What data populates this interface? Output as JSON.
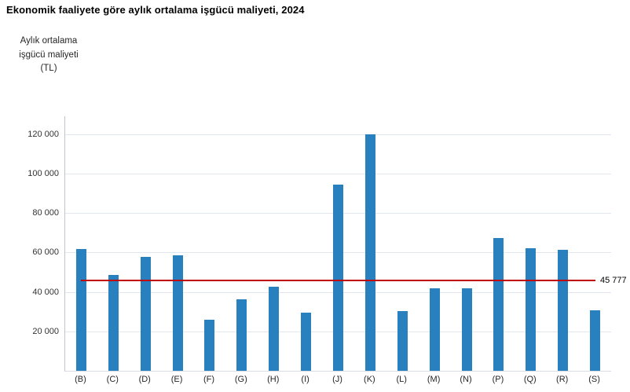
{
  "title": "Ekonomik faaliyete göre aylık ortalama işgücü maliyeti, 2024",
  "y_axis_unit_label": {
    "line1": "Aylık ortalama",
    "line2": "işgücü maliyeti",
    "line3": "(TL)"
  },
  "colors": {
    "bar": "#2980BE",
    "reference_line": "#C00000",
    "gridline": "#E1E6EF",
    "axis": "#BFC5CE"
  },
  "chart_data": {
    "type": "bar",
    "title": "Ekonomik faaliyete göre aylık ortalama işgücü maliyeti, 2024",
    "ylabel": "Aylık ortalama işgücü maliyeti (TL)",
    "categories": [
      "(B)",
      "(C)",
      "(D)",
      "(E)",
      "(F)",
      "(G)",
      "(H)",
      "(I)",
      "(J)",
      "(K)",
      "(L)",
      "(M)",
      "(N)",
      "(P)",
      "(Q)",
      "(R)",
      "(S)"
    ],
    "values": [
      61900,
      48400,
      57900,
      58700,
      25900,
      36300,
      42800,
      29600,
      94200,
      120000,
      30300,
      41900,
      41800,
      67400,
      62100,
      61300,
      30800
    ],
    "ylim": [
      0,
      129000
    ],
    "ytick_step": 20000,
    "yticks": [
      {
        "value": 20000,
        "label": "20 000"
      },
      {
        "value": 40000,
        "label": "40 000"
      },
      {
        "value": 60000,
        "label": "60 000"
      },
      {
        "value": 80000,
        "label": "80 000"
      },
      {
        "value": 100000,
        "label": "100 000"
      },
      {
        "value": 120000,
        "label": "120 000"
      }
    ],
    "grid": "horizontal",
    "legend": "none",
    "reference_line": {
      "value": 45777,
      "label": "45 777"
    }
  }
}
